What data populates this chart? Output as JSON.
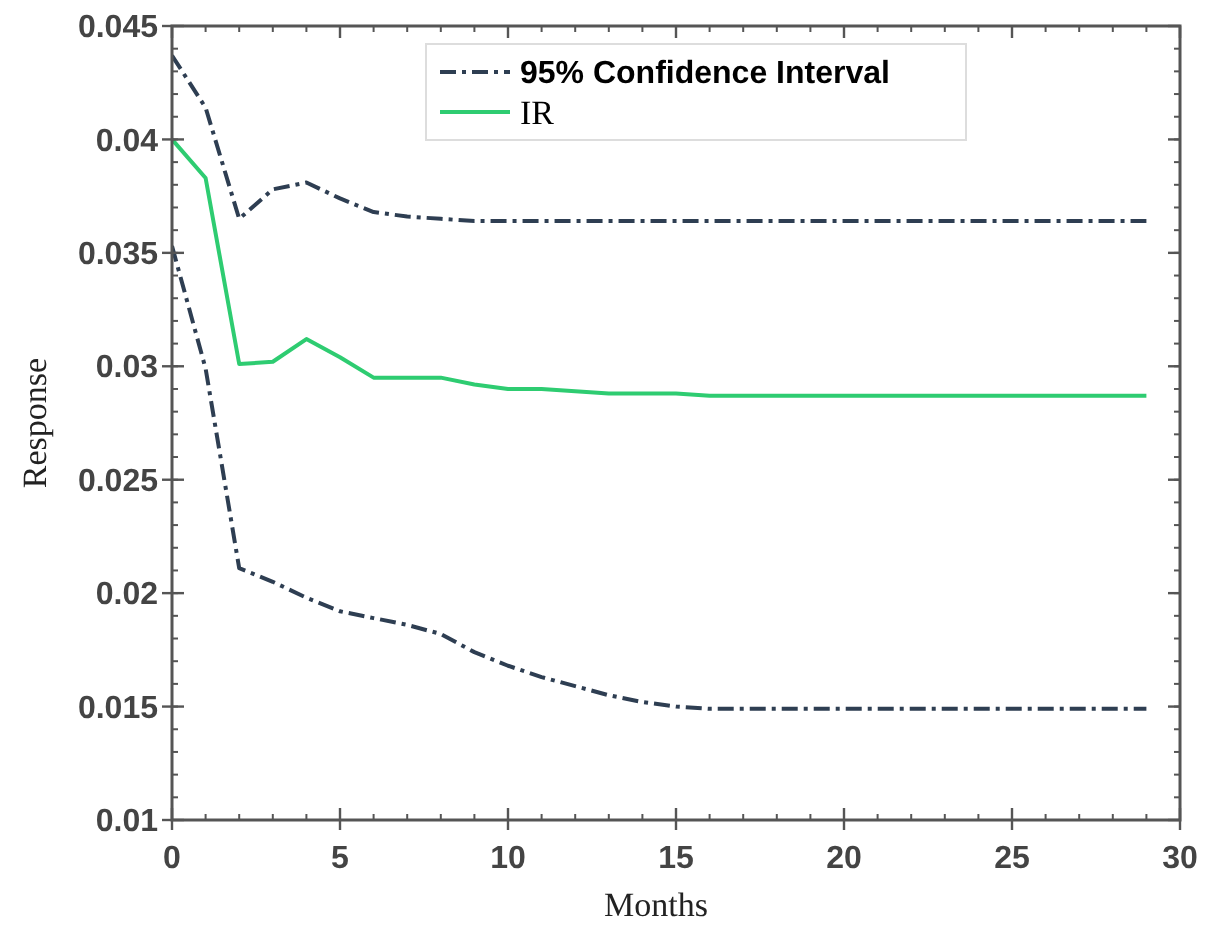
{
  "chart_data": {
    "type": "line",
    "xlabel": "Months",
    "ylabel": "Response",
    "x": [
      0,
      1,
      2,
      3,
      4,
      5,
      6,
      7,
      8,
      9,
      10,
      11,
      12,
      13,
      14,
      15,
      16,
      17,
      18,
      19,
      20,
      21,
      22,
      23,
      24,
      25,
      26,
      27,
      28,
      29
    ],
    "series": [
      {
        "name": "95% Confidence Interval",
        "color": "#2e3e52",
        "line_style": "dashed",
        "values": [
          0.0437,
          0.0414,
          0.0365,
          0.0378,
          0.0381,
          0.0374,
          0.0368,
          0.0366,
          0.0365,
          0.0364,
          0.0364,
          0.0364,
          0.0364,
          0.0364,
          0.0364,
          0.0364,
          0.0364,
          0.0364,
          0.0364,
          0.0364,
          0.0364,
          0.0364,
          0.0364,
          0.0364,
          0.0364,
          0.0364,
          0.0364,
          0.0364,
          0.0364,
          0.0364
        ]
      },
      {
        "name": "IR",
        "color": "#2ecc71",
        "line_style": "solid",
        "values": [
          0.04,
          0.0383,
          0.0301,
          0.0302,
          0.0312,
          0.0304,
          0.0295,
          0.0295,
          0.0295,
          0.0292,
          0.029,
          0.029,
          0.0289,
          0.0288,
          0.0288,
          0.0288,
          0.0287,
          0.0287,
          0.0287,
          0.0287,
          0.0287,
          0.0287,
          0.0287,
          0.0287,
          0.0287,
          0.0287,
          0.0287,
          0.0287,
          0.0287,
          0.0287
        ]
      },
      {
        "color": "#2e3e52",
        "line_style": "dashed",
        "values": [
          0.0353,
          0.0299,
          0.0211,
          0.0205,
          0.0198,
          0.0192,
          0.0189,
          0.0186,
          0.0182,
          0.0174,
          0.0168,
          0.0163,
          0.0159,
          0.0155,
          0.0152,
          0.015,
          0.0149,
          0.0149,
          0.0149,
          0.0149,
          0.0149,
          0.0149,
          0.0149,
          0.0149,
          0.0149,
          0.0149,
          0.0149,
          0.0149,
          0.0149,
          0.0149
        ]
      }
    ],
    "xlim": [
      0,
      30
    ],
    "ylim": [
      0.01,
      0.045
    ],
    "xticks": [
      0,
      5,
      10,
      15,
      20,
      25,
      30
    ],
    "yticks": [
      {
        "value": 0.01,
        "label": "0.01"
      },
      {
        "value": 0.015,
        "label": "0.015"
      },
      {
        "value": 0.02,
        "label": "0.02"
      },
      {
        "value": 0.025,
        "label": "0.025"
      },
      {
        "value": 0.03,
        "label": "0.03"
      },
      {
        "value": 0.035,
        "label": "0.035"
      },
      {
        "value": 0.04,
        "label": "0.04"
      },
      {
        "value": 0.045,
        "label": "0.045"
      }
    ],
    "grid": false,
    "legend": "top",
    "marker": "none"
  }
}
